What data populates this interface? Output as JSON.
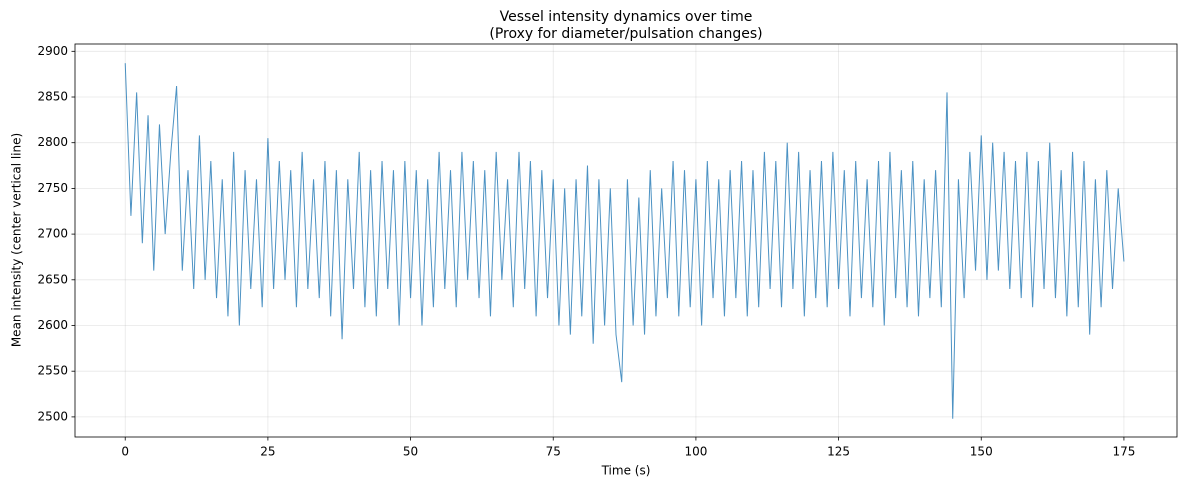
{
  "chart_data": {
    "type": "line",
    "title": "Vessel intensity dynamics over time",
    "subtitle": "(Proxy for diameter/pulsation changes)",
    "x_label": "Time (s)",
    "y_label": "Mean intensity (center vertical line)",
    "xlim": [
      -8.8,
      184.3
    ],
    "ylim": [
      2478,
      2908
    ],
    "xticks": [
      0,
      25,
      50,
      75,
      100,
      125,
      150,
      175
    ],
    "yticks": [
      2500,
      2550,
      2600,
      2650,
      2700,
      2750,
      2800,
      2850,
      2900
    ],
    "grid": true,
    "x": [
      0,
      1,
      2,
      3,
      4,
      5,
      6,
      7,
      8,
      9,
      10,
      11,
      12,
      13,
      14,
      15,
      16,
      17,
      18,
      19,
      20,
      21,
      22,
      23,
      24,
      25,
      26,
      27,
      28,
      29,
      30,
      31,
      32,
      33,
      34,
      35,
      36,
      37,
      38,
      39,
      40,
      41,
      42,
      43,
      44,
      45,
      46,
      47,
      48,
      49,
      50,
      51,
      52,
      53,
      54,
      55,
      56,
      57,
      58,
      59,
      60,
      61,
      62,
      63,
      64,
      65,
      66,
      67,
      68,
      69,
      70,
      71,
      72,
      73,
      74,
      75,
      76,
      77,
      78,
      79,
      80,
      81,
      82,
      83,
      84,
      85,
      86,
      87,
      88,
      89,
      90,
      91,
      92,
      93,
      94,
      95,
      96,
      97,
      98,
      99,
      100,
      101,
      102,
      103,
      104,
      105,
      106,
      107,
      108,
      109,
      110,
      111,
      112,
      113,
      114,
      115,
      116,
      117,
      118,
      119,
      120,
      121,
      122,
      123,
      124,
      125,
      126,
      127,
      128,
      129,
      130,
      131,
      132,
      133,
      134,
      135,
      136,
      137,
      138,
      139,
      140,
      141,
      142,
      143,
      144,
      145,
      146,
      147,
      148,
      149,
      150,
      151,
      152,
      153,
      154,
      155,
      156,
      157,
      158,
      159,
      160,
      161,
      162,
      163,
      164,
      165,
      166,
      167,
      168,
      169,
      170,
      171,
      172,
      173,
      174,
      175
    ],
    "series": [
      {
        "color": "#1f77b4",
        "values": [
          2887,
          2720,
          2855,
          2690,
          2830,
          2660,
          2820,
          2700,
          2790,
          2862,
          2660,
          2770,
          2640,
          2808,
          2650,
          2780,
          2630,
          2760,
          2610,
          2790,
          2600,
          2770,
          2640,
          2760,
          2620,
          2805,
          2640,
          2780,
          2650,
          2770,
          2620,
          2790,
          2640,
          2760,
          2630,
          2780,
          2610,
          2770,
          2585,
          2760,
          2640,
          2790,
          2620,
          2770,
          2610,
          2780,
          2640,
          2770,
          2600,
          2780,
          2630,
          2770,
          2600,
          2760,
          2620,
          2790,
          2640,
          2770,
          2620,
          2790,
          2650,
          2780,
          2630,
          2770,
          2610,
          2790,
          2650,
          2760,
          2620,
          2790,
          2640,
          2780,
          2610,
          2770,
          2630,
          2760,
          2600,
          2750,
          2590,
          2760,
          2610,
          2775,
          2580,
          2760,
          2600,
          2750,
          2590,
          2538,
          2760,
          2600,
          2740,
          2590,
          2770,
          2610,
          2750,
          2630,
          2780,
          2610,
          2770,
          2620,
          2760,
          2600,
          2780,
          2630,
          2760,
          2610,
          2770,
          2630,
          2780,
          2610,
          2770,
          2620,
          2790,
          2640,
          2780,
          2620,
          2800,
          2640,
          2790,
          2610,
          2770,
          2630,
          2780,
          2620,
          2790,
          2640,
          2770,
          2610,
          2780,
          2630,
          2760,
          2620,
          2780,
          2600,
          2790,
          2630,
          2770,
          2620,
          2780,
          2610,
          2760,
          2630,
          2770,
          2620,
          2855,
          2498,
          2760,
          2630,
          2790,
          2660,
          2808,
          2650,
          2800,
          2660,
          2790,
          2640,
          2780,
          2630,
          2790,
          2620,
          2780,
          2640,
          2800,
          2630,
          2770,
          2610,
          2790,
          2620,
          2780,
          2590,
          2760,
          2620,
          2770,
          2640,
          2750,
          2670
        ]
      }
    ]
  }
}
